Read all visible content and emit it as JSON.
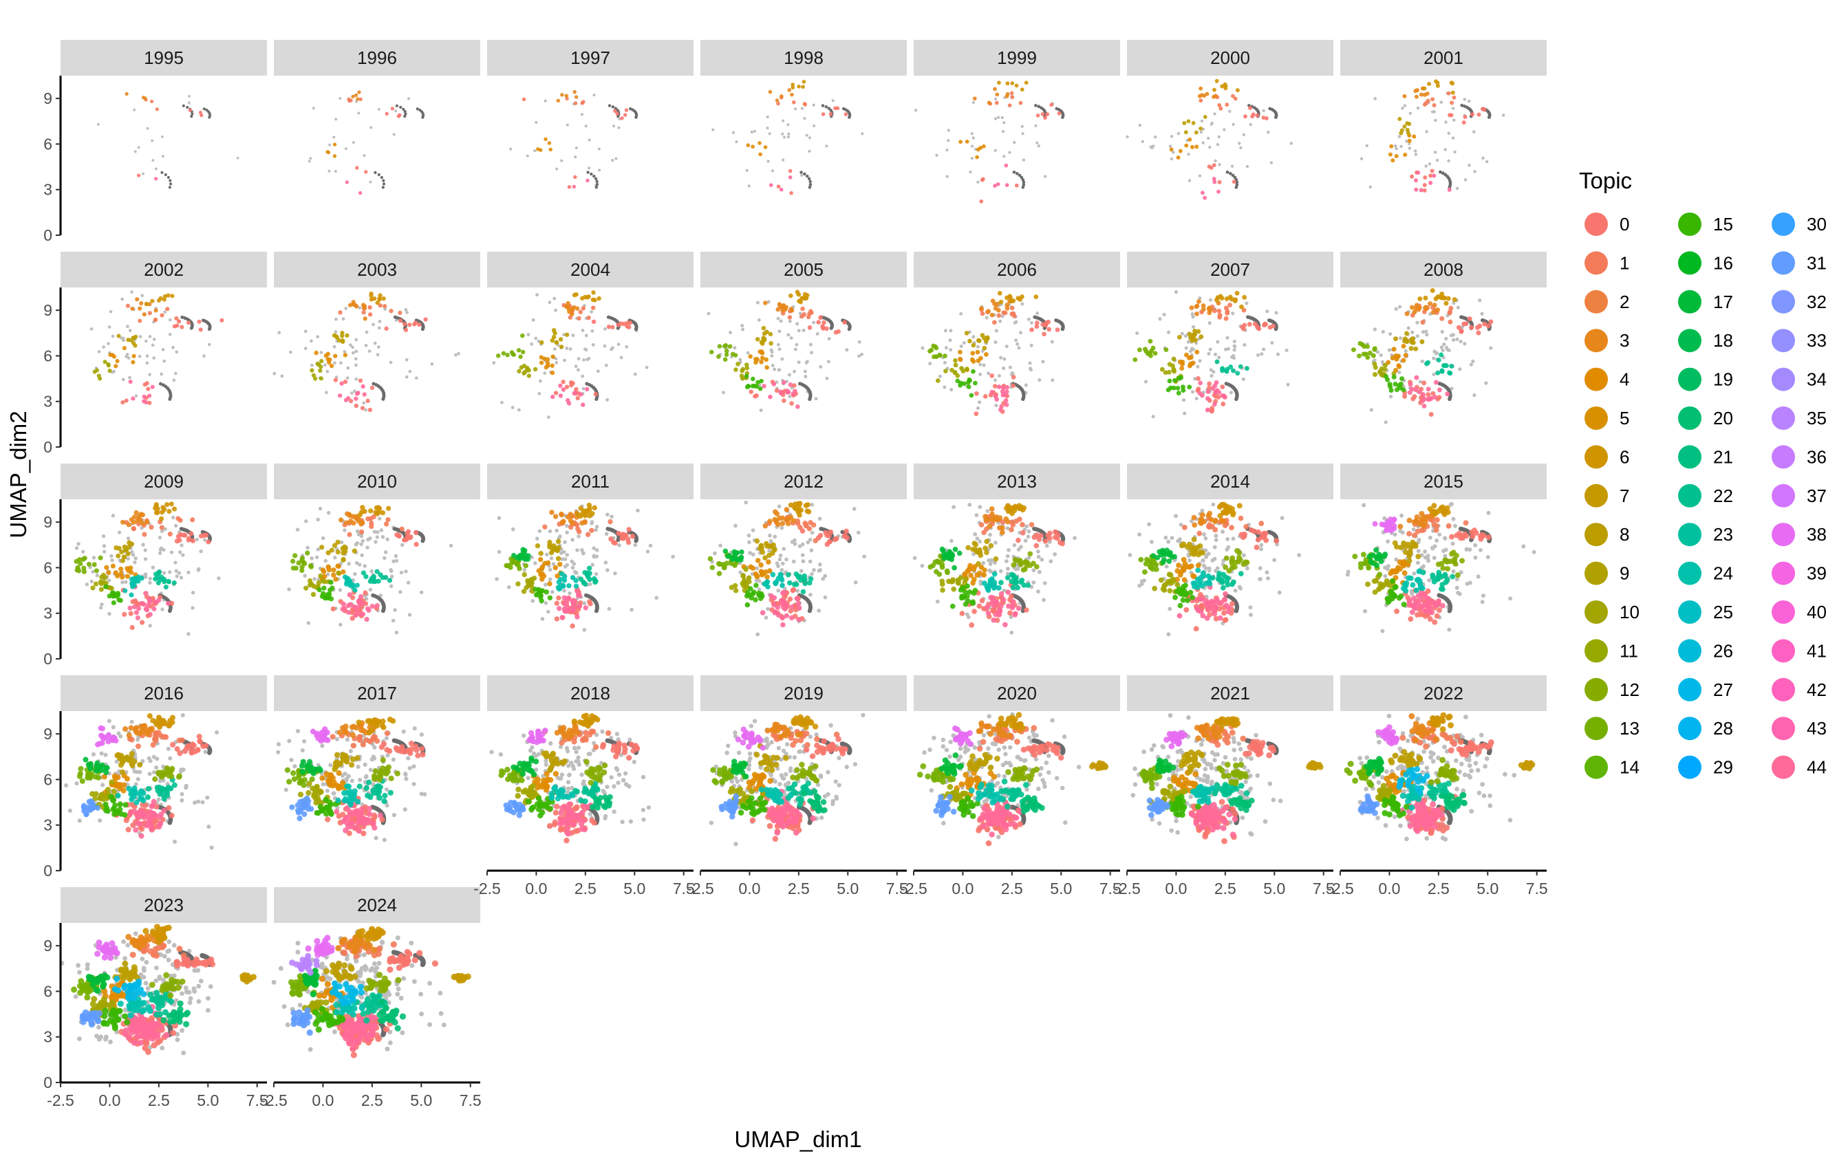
{
  "chart_data": {
    "type": "scatter",
    "facet_by": "year",
    "xlabel": "UMAP_dim1",
    "ylabel": "UMAP_dim2",
    "xlim": [
      -2.5,
      8.0
    ],
    "ylim": [
      0,
      10.5
    ],
    "x_ticks": [
      -2.5,
      0.0,
      2.5,
      5.0,
      7.5
    ],
    "x_tick_labels": [
      "-2.5",
      "0.0",
      "2.5",
      "5.0",
      "7.5"
    ],
    "y_ticks": [
      0,
      3,
      6,
      9
    ],
    "y_tick_labels": [
      "0",
      "3",
      "6",
      "9"
    ],
    "facets": [
      "1995",
      "1996",
      "1997",
      "1998",
      "1999",
      "2000",
      "2001",
      "2002",
      "2003",
      "2004",
      "2005",
      "2006",
      "2007",
      "2008",
      "2009",
      "2010",
      "2011",
      "2012",
      "2013",
      "2014",
      "2015",
      "2016",
      "2017",
      "2018",
      "2019",
      "2020",
      "2021",
      "2022",
      "2023",
      "2024"
    ],
    "legend": {
      "title": "Topic",
      "placement": "right",
      "labels": [
        "0",
        "1",
        "2",
        "3",
        "4",
        "5",
        "6",
        "7",
        "8",
        "9",
        "10",
        "11",
        "12",
        "13",
        "14",
        "15",
        "16",
        "17",
        "18",
        "19",
        "20",
        "21",
        "22",
        "23",
        "24",
        "25",
        "26",
        "27",
        "28",
        "29",
        "30",
        "31",
        "32",
        "33",
        "34",
        "35",
        "36",
        "37",
        "38",
        "39",
        "40",
        "41",
        "42",
        "43",
        "44"
      ],
      "colors": [
        "#F8766D",
        "#F37B59",
        "#ED8141",
        "#E7861B",
        "#E08B00",
        "#D89000",
        "#CF9400",
        "#C59900",
        "#BB9D00",
        "#B0A100",
        "#A3A500",
        "#95A900",
        "#86AC00",
        "#75AF00",
        "#5FB404",
        "#39B600",
        "#00B81F",
        "#00BA38",
        "#00BB4E",
        "#00BC61",
        "#00BE72",
        "#00BF81",
        "#00C090",
        "#00C09E",
        "#00C1AB",
        "#00BFC4",
        "#00BCD8",
        "#00B8E7",
        "#00B4F0",
        "#00A9FF",
        "#35A2FF",
        "#619CFF",
        "#7F96FF",
        "#9590FF",
        "#A58AFF",
        "#B983FF",
        "#C77CFF",
        "#D376FF",
        "#E76BF3",
        "#F564E3",
        "#FA62D7",
        "#FF61C3",
        "#FF62BC",
        "#FF64B0",
        "#FF6A98"
      ]
    },
    "grey_color": "#BEBEBE",
    "dark_color": "#6B6B6B"
  }
}
